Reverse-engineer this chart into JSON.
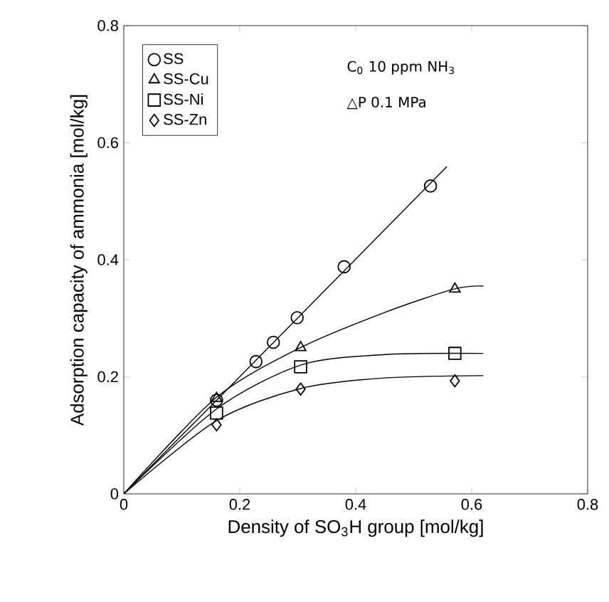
{
  "chart_data": {
    "type": "scatter",
    "xlabel": "Density of SO$_{3}$H group [mol/kg]",
    "ylabel": "Adsorption capacity of ammonia [mol/kg]",
    "xlim": [
      0,
      0.8
    ],
    "ylim": [
      0,
      0.8
    ],
    "xticks": [
      0,
      0.2,
      0.4,
      0.6,
      0.8
    ],
    "yticks": [
      0,
      0.2,
      0.4,
      0.6,
      0.8
    ],
    "legend": "top left",
    "grid": false,
    "annotations": [
      "C$_{0}$  10 ppm NH$_{3}$",
      "△P  0.1 MPa"
    ],
    "series": [
      {
        "name": "SS",
        "color": "#000000",
        "marker": "circle",
        "x": [
          0.16,
          0.228,
          0.258,
          0.299,
          0.38,
          0.529
        ],
        "values": [
          0.16,
          0.226,
          0.259,
          0.301,
          0.388,
          0.526
        ]
      },
      {
        "name": "SS-Cu",
        "color": "#000000",
        "marker": "triangle",
        "x": [
          0.16,
          0.305,
          0.571
        ],
        "values": [
          0.163,
          0.25,
          0.35
        ]
      },
      {
        "name": "SS-Ni",
        "color": "#000000",
        "marker": "square",
        "x": [
          0.16,
          0.305,
          0.571
        ],
        "values": [
          0.138,
          0.217,
          0.24
        ]
      },
      {
        "name": "SS-Zn",
        "color": "#000000",
        "marker": "diamond",
        "x": [
          0.16,
          0.305,
          0.571
        ],
        "values": [
          0.118,
          0.179,
          0.193
        ]
      },
      {
        "type": "line",
        "color": "#000000",
        "marker": "none",
        "x": [
          0,
          0.16,
          0.557
        ],
        "values": [
          0,
          0.16,
          0.559
        ]
      },
      {
        "type": "line",
        "color": "#000000",
        "marker": "none",
        "x": [
          0,
          0.16,
          0.305,
          0.45,
          0.57,
          0.62
        ],
        "values": [
          0,
          0.165,
          0.25,
          0.31,
          0.35,
          0.355
        ]
      },
      {
        "type": "line",
        "color": "#000000",
        "marker": "none",
        "x": [
          0,
          0.16,
          0.305,
          0.45,
          0.62
        ],
        "values": [
          0,
          0.145,
          0.22,
          0.238,
          0.24
        ]
      },
      {
        "type": "line",
        "color": "#000000",
        "marker": "none",
        "x": [
          0,
          0.16,
          0.305,
          0.45,
          0.62
        ],
        "values": [
          0,
          0.125,
          0.18,
          0.198,
          0.202
        ]
      }
    ]
  }
}
